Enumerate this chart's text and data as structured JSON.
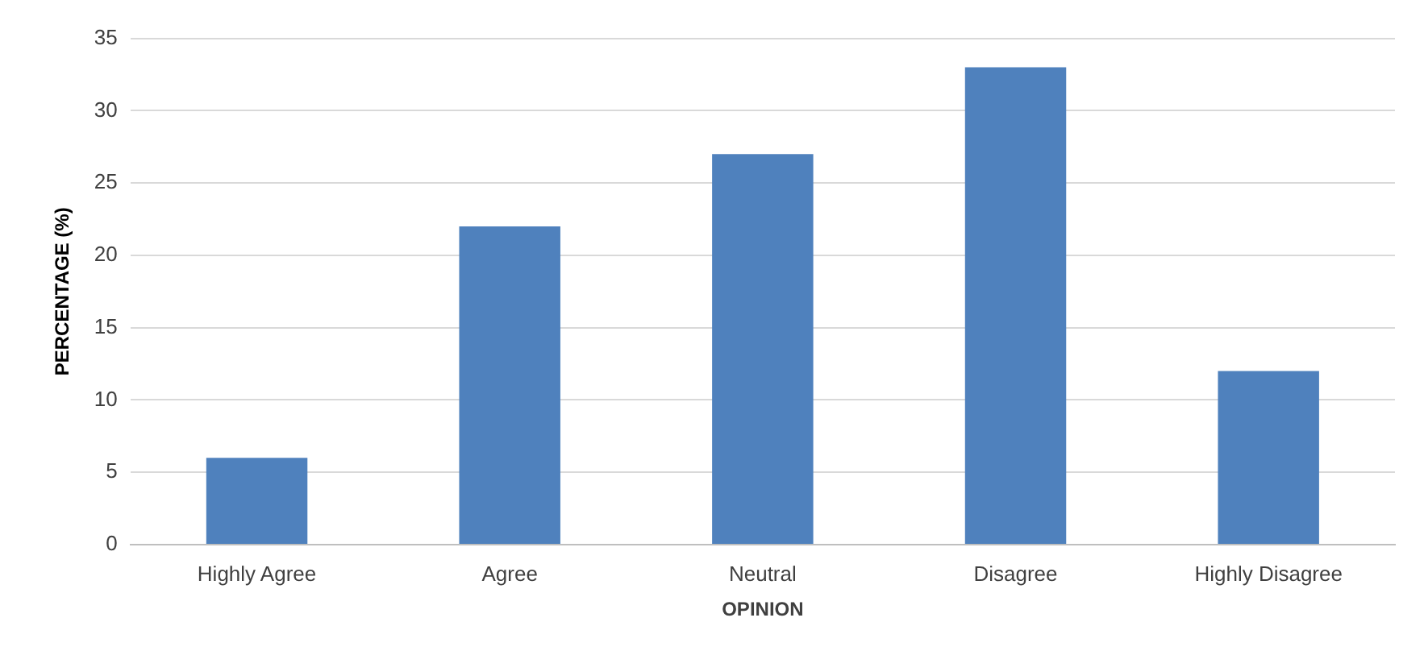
{
  "chart_data": {
    "type": "bar",
    "xlabel": "OPINION",
    "ylabel": "PERCENTAGE (%)",
    "categories": [
      "Highly Agree",
      "Agree",
      "Neutral",
      "Disagree",
      "Highly Disagree"
    ],
    "values": [
      6,
      22,
      27,
      33,
      12
    ],
    "color": "#4f81bd",
    "ylim": [
      0,
      35
    ],
    "yticks": [
      0,
      5,
      10,
      15,
      20,
      25,
      30,
      35
    ],
    "grid": "y",
    "legend": false
  }
}
